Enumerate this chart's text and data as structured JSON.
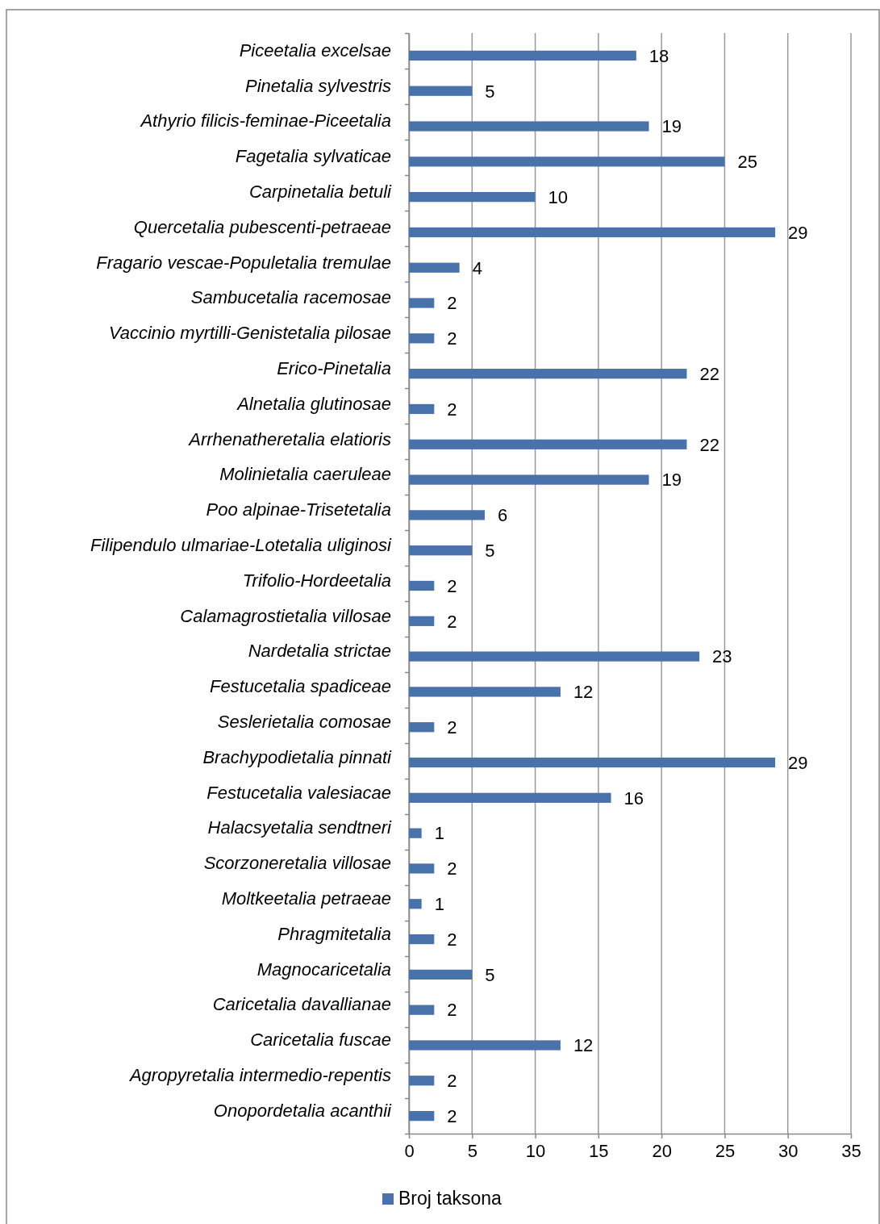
{
  "chart_data": {
    "type": "bar",
    "orientation": "horizontal",
    "categories": [
      "Piceetalia excelsae",
      "Pinetalia sylvestris",
      "Athyrio filicis-feminae-Piceetalia",
      "Fagetalia sylvaticae",
      "Carpinetalia betuli",
      "Quercetalia pubescenti-petraeae",
      "Fragario vescae-Populetalia tremulae",
      "Sambucetalia racemosae",
      "Vaccinio myrtilli-Genistetalia pilosae",
      "Erico-Pinetalia",
      "Alnetalia glutinosae",
      "Arrhenatheretalia elatioris",
      "Molinietalia caeruleae",
      "Poo alpinae-Trisetetalia",
      "Filipendulo ulmariae-Lotetalia uliginosi",
      "Trifolio-Hordeetalia",
      "Calamagrostietalia villosae",
      "Nardetalia strictae",
      "Festucetalia spadiceae",
      "Seslerietalia comosae",
      "Brachypodietalia pinnati",
      "Festucetalia valesiacae",
      "Halacsyetalia sendtneri",
      "Scorzoneretalia villosae",
      "Moltkeetalia petraeae",
      "Phragmitetalia",
      "Magnocaricetalia",
      "Caricetalia davallianae",
      "Caricetalia fuscae",
      "Agropyretalia intermedio-repentis",
      "Onopordetalia acanthii"
    ],
    "series": [
      {
        "name": "Broj taksona",
        "color": "#4a72aa",
        "values": [
          18,
          5,
          19,
          25,
          10,
          29,
          4,
          2,
          2,
          22,
          2,
          22,
          19,
          6,
          5,
          2,
          2,
          23,
          12,
          2,
          29,
          16,
          1,
          2,
          1,
          2,
          5,
          2,
          12,
          2,
          2
        ]
      }
    ],
    "xlim": [
      0,
      35
    ],
    "xticks": [
      0,
      5,
      10,
      15,
      20,
      25,
      30,
      35
    ],
    "grid": "x",
    "legend": "bottom",
    "data_labels": true
  }
}
